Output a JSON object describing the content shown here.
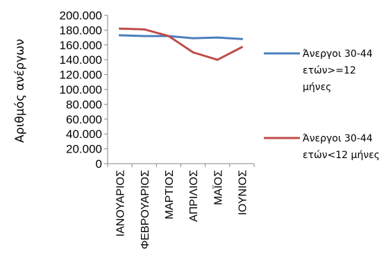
{
  "chart_data": {
    "type": "line",
    "title": "",
    "xlabel": "",
    "ylabel": "Αριθμός ανέργων",
    "categories": [
      "ΙΑΝΟΥΑΡΙΟΣ",
      "ΦΕΒΡΟΥΑΡΙΟΣ",
      "ΜΑΡΤΙΟΣ",
      "ΑΠΡΙΛΙΟΣ",
      "ΜΑΪΟΣ",
      "ΙΟΥΝΙΟΣ"
    ],
    "ylim": [
      0,
      200000
    ],
    "y_ticks": [
      {
        "value": 0,
        "label": "0"
      },
      {
        "value": 20000,
        "label": "20.000"
      },
      {
        "value": 40000,
        "label": "40.000"
      },
      {
        "value": 60000,
        "label": "60.000"
      },
      {
        "value": 80000,
        "label": "80.000"
      },
      {
        "value": 100000,
        "label": "100.000"
      },
      {
        "value": 120000,
        "label": "120.000"
      },
      {
        "value": 140000,
        "label": "140.000"
      },
      {
        "value": 160000,
        "label": "160.000"
      },
      {
        "value": 180000,
        "label": "180.000"
      },
      {
        "value": 200000,
        "label": "200.000"
      }
    ],
    "grid": false,
    "legend_position": "right",
    "series": [
      {
        "name": "Άνεργοι 30-44 ετών>=12 μήνες",
        "color": "#4a7ebb",
        "values": [
          173000,
          172000,
          172000,
          169000,
          170000,
          168000
        ]
      },
      {
        "name": "Άνεργοι 30-44 ετών<12 μήνες",
        "color": "#be4b48",
        "values": [
          182000,
          181000,
          172000,
          150000,
          140000,
          157000
        ]
      }
    ]
  }
}
